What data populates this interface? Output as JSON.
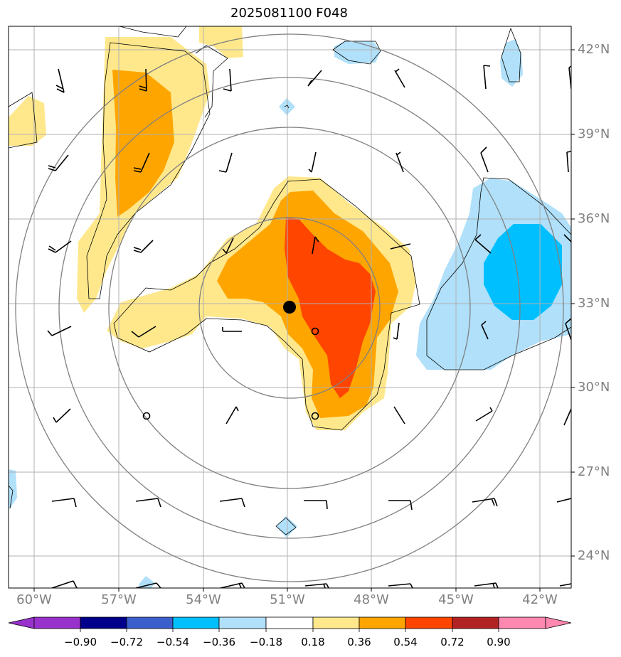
{
  "title": "2025081100 F048",
  "lat_labels": [
    "42°N",
    "39°N",
    "36°N",
    "33°N",
    "30°N",
    "27°N",
    "24°N"
  ],
  "lon_labels": [
    "60°W",
    "57°W",
    "54°W",
    "51°W",
    "48°W",
    "45°W",
    "42°W"
  ],
  "colorbar": {
    "ticks": [
      "−0.90",
      "−0.72",
      "−0.54",
      "−0.36",
      "−0.18",
      "0.18",
      "0.36",
      "0.54",
      "0.72",
      "0.90"
    ],
    "colors": [
      "#9932cc",
      "#00008b",
      "#3a5fcd",
      "#00bfff",
      "#b0e0fa",
      "#ffffff",
      "#ffe88c",
      "#ffa500",
      "#ff4500",
      "#b22222",
      "#ff88b0"
    ]
  },
  "colors": {
    "light_yellow": "#ffe88c",
    "orange": "#ffa500",
    "red_orange": "#ff4500",
    "light_blue": "#b0e0fa",
    "deep_sky_blue": "#00bfff",
    "grid": "#b0b0b0",
    "ring": "#808080"
  },
  "center_marker": "storm-center-dot"
}
